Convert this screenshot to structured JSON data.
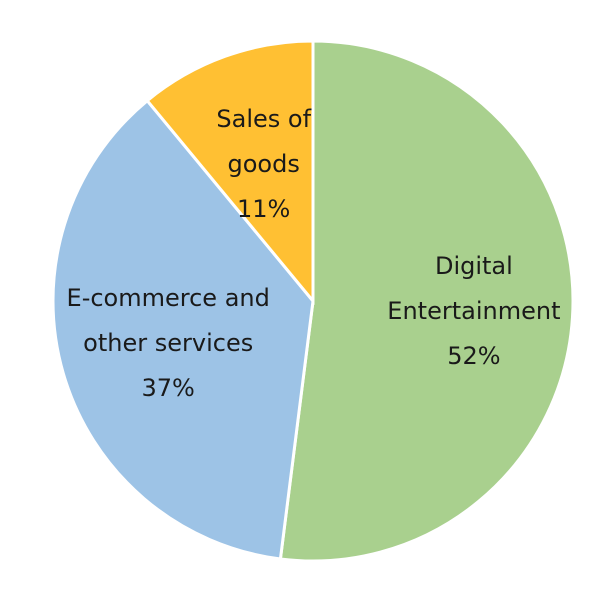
{
  "chart_data": {
    "type": "pie",
    "title": "",
    "start_angle_deg": 0,
    "direction": "clockwise",
    "slices": [
      {
        "label_lines": [
          "Digital",
          "Entertainment"
        ],
        "value": 52,
        "value_label": "52%",
        "color": "#a9d08e"
      },
      {
        "label_lines": [
          "E-commerce and",
          "other services"
        ],
        "value": 37,
        "value_label": "37%",
        "color": "#9dc3e6"
      },
      {
        "label_lines": [
          "Sales of",
          "goods"
        ],
        "value": 11,
        "value_label": "11%",
        "color": "#ffc033"
      }
    ]
  }
}
